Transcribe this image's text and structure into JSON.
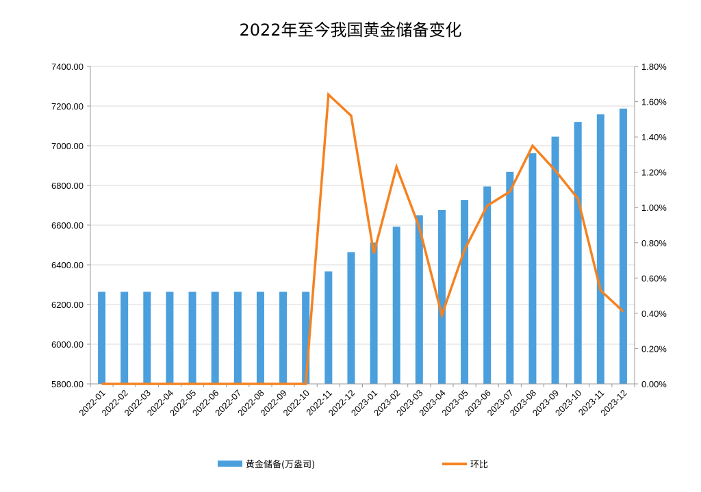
{
  "chart_data": {
    "type": "bar",
    "title": "2022年至今我国黄金储备变化",
    "categories": [
      "2022-01",
      "2022-02",
      "2022-03",
      "2022-04",
      "2022-05",
      "2022-06",
      "2022-07",
      "2022-08",
      "2022-09",
      "2022-10",
      "2022-11",
      "2022-12",
      "2023-01",
      "2023-02",
      "2023-03",
      "2023-04",
      "2023-05",
      "2023-06",
      "2023-07",
      "2023-08",
      "2023-09",
      "2023-10",
      "2023-11",
      "2023-12"
    ],
    "series": [
      {
        "name": "黄金储备(万盎司)",
        "type": "bar",
        "axis": "left",
        "color": "#4a9fdc",
        "values": [
          6264,
          6264,
          6264,
          6264,
          6264,
          6264,
          6264,
          6264,
          6264,
          6264,
          6367,
          6464,
          6512,
          6592,
          6650,
          6676,
          6727,
          6795,
          6869,
          6962,
          7046,
          7120,
          7158,
          7187
        ]
      },
      {
        "name": "环比",
        "type": "line",
        "axis": "right",
        "color": "#f58220",
        "values": [
          0.0,
          0.0,
          0.0,
          0.0,
          0.0,
          0.0,
          0.0,
          0.0,
          0.0,
          0.0,
          1.64,
          1.52,
          0.74,
          1.23,
          0.89,
          0.39,
          0.76,
          1.01,
          1.09,
          1.35,
          1.21,
          1.05,
          0.53,
          0.41
        ]
      }
    ],
    "y_left": {
      "ylim": [
        5800,
        7400
      ],
      "ticks": [
        "5800.00",
        "6000.00",
        "6200.00",
        "6400.00",
        "6600.00",
        "6800.00",
        "7000.00",
        "7200.00",
        "7400.00"
      ]
    },
    "y_right": {
      "ylim": [
        0,
        1.8
      ],
      "ticks": [
        "0.00%",
        "0.20%",
        "0.40%",
        "0.60%",
        "0.80%",
        "1.00%",
        "1.20%",
        "1.40%",
        "1.60%",
        "1.80%"
      ]
    },
    "grid": true,
    "legend": "bottom"
  }
}
